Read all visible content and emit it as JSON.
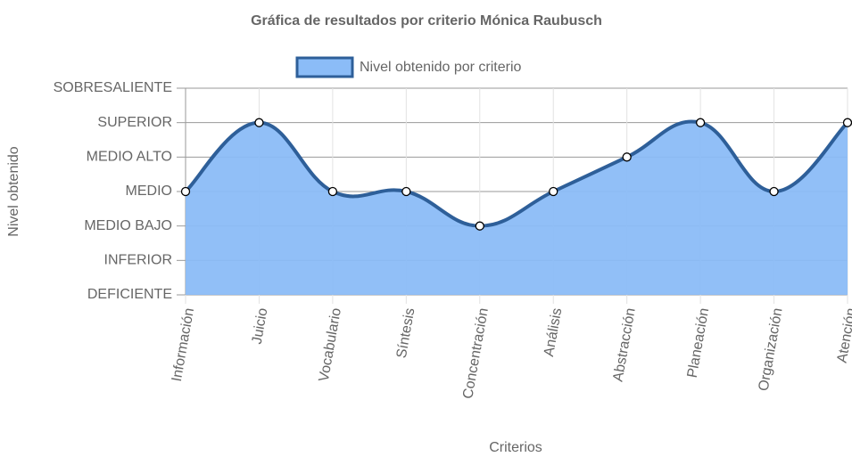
{
  "chart_data": {
    "type": "area",
    "title": "Gráfica de resultados por criterio Mónica Raubusch",
    "x_label": "Criterios",
    "y_label": "Nivel obtenido",
    "categories": [
      "Información",
      "Juicio",
      "Vocabulario",
      "Síntesis",
      "Concentración",
      "Análisis",
      "Abstracción",
      "Planeación",
      "Organización",
      "Atención"
    ],
    "series": [
      {
        "name": "Nivel obtenido por criterio",
        "color": "#2e5f99",
        "fill_color": "#8bbcf7",
        "values": [
          3,
          5,
          3,
          3,
          2,
          3,
          4,
          5,
          3,
          5
        ]
      }
    ],
    "ylim": [
      0,
      6
    ],
    "yticks": [
      {
        "value": 0,
        "label": "DEFICIENTE"
      },
      {
        "value": 1,
        "label": "INFERIOR"
      },
      {
        "value": 2,
        "label": "MEDIO BAJO"
      },
      {
        "value": 3,
        "label": "MEDIO"
      },
      {
        "value": 4,
        "label": "MEDIO ALTO"
      },
      {
        "value": 5,
        "label": "SUPERIOR"
      },
      {
        "value": 6,
        "label": "SOBRESALIENTE"
      }
    ],
    "grid": true
  }
}
